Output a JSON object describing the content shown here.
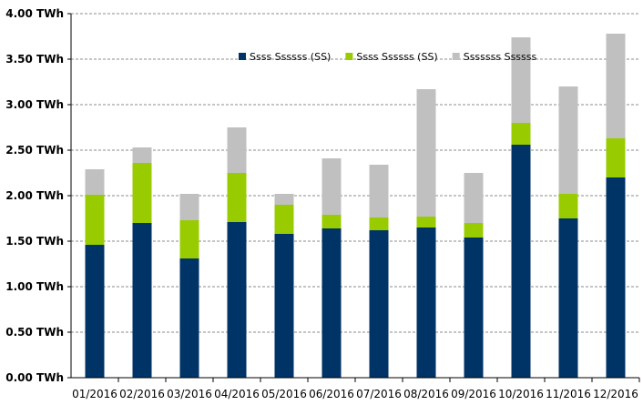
{
  "chart_data": {
    "type": "bar",
    "stacked": true,
    "categories": [
      "01/2016",
      "02/2016",
      "03/2016",
      "04/2016",
      "05/2016",
      "06/2016",
      "07/2016",
      "08/2016",
      "09/2016",
      "10/2016",
      "11/2016",
      "12/2016"
    ],
    "y_ticks": [
      "0.00 TWh",
      "0.50 TWh",
      "1.00 TWh",
      "1.50 TWh",
      "2.00 TWh",
      "2.50 TWh",
      "3.00 TWh",
      "3.50 TWh",
      "4.00 TWh"
    ],
    "ylim": [
      0,
      4
    ],
    "grid": true,
    "legend_position": "top-center",
    "series": [
      {
        "name": "Ssss Ssssss (SS)",
        "color": "#003366",
        "values": [
          1.46,
          1.7,
          1.31,
          1.71,
          1.58,
          1.64,
          1.62,
          1.65,
          1.54,
          2.56,
          1.75,
          2.2
        ]
      },
      {
        "name": "Ssss Ssssss (SS)",
        "color": "#99CC00",
        "values": [
          0.55,
          0.66,
          0.42,
          0.54,
          0.32,
          0.15,
          0.14,
          0.12,
          0.16,
          0.24,
          0.27,
          0.43
        ]
      },
      {
        "name": "Sssssss Ssssss",
        "color": "#C0C0C0",
        "values": [
          0.28,
          0.17,
          0.29,
          0.5,
          0.12,
          0.62,
          0.58,
          1.4,
          0.55,
          0.94,
          1.18,
          1.15
        ]
      }
    ]
  }
}
